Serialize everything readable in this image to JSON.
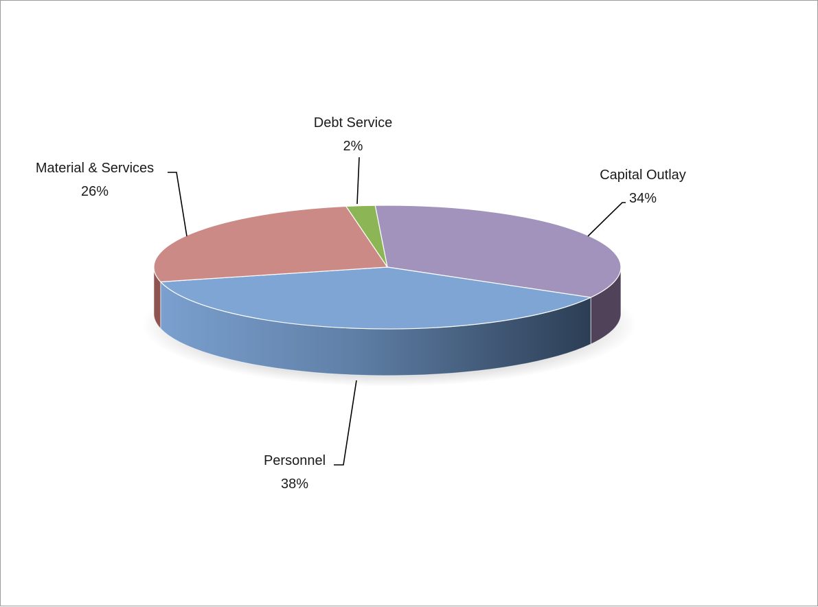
{
  "chart_data": {
    "type": "pie",
    "style": "3d",
    "title": "",
    "slices": [
      {
        "name": "Capital Outlay",
        "value": 34,
        "label": "34%",
        "color": "#A193BC",
        "side": "#4F4259"
      },
      {
        "name": "Personnel",
        "value": 38,
        "label": "38%",
        "color": "#7FA5D4",
        "side": "#3E5877"
      },
      {
        "name": "Material & Services",
        "value": 26,
        "label": "26%",
        "color": "#CC8A87",
        "side": "#8E5450"
      },
      {
        "name": "Debt Service",
        "value": 2,
        "label": "2%",
        "color": "#8CB556",
        "side": "#587535"
      }
    ],
    "legend": "none",
    "data_labels": "outside with leader lines"
  }
}
